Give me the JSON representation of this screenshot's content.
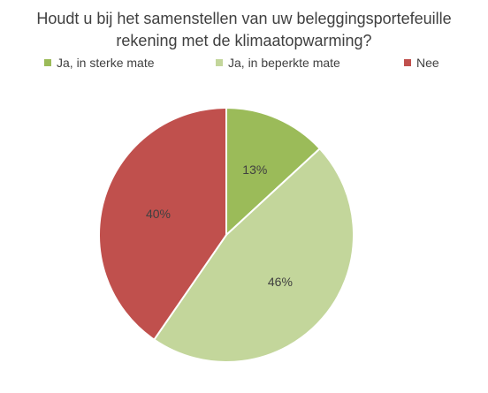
{
  "title_lines": [
    "Houdt u bij het samenstellen van uw beleggingsportefeuille",
    "rekening met de klimaatopwarming?"
  ],
  "legend": [
    {
      "label": "Ja, in sterke mate",
      "color": "#9bbb59"
    },
    {
      "label": "Ja, in beperkte mate",
      "color": "#c3d69b"
    },
    {
      "label": "Nee",
      "color": "#c0504d"
    }
  ],
  "chart_data": {
    "type": "pie",
    "title": "Houdt u bij het samenstellen van uw beleggingsportefeuille rekening met de klimaatopwarming?",
    "categories": [
      "Ja, in sterke mate",
      "Ja, in beperkte mate",
      "Nee"
    ],
    "values": [
      13,
      46,
      40
    ],
    "labels": [
      "13%",
      "46%",
      "40%"
    ],
    "colors": [
      "#9bbb59",
      "#c3d69b",
      "#c0504d"
    ],
    "legend_position": "top"
  }
}
